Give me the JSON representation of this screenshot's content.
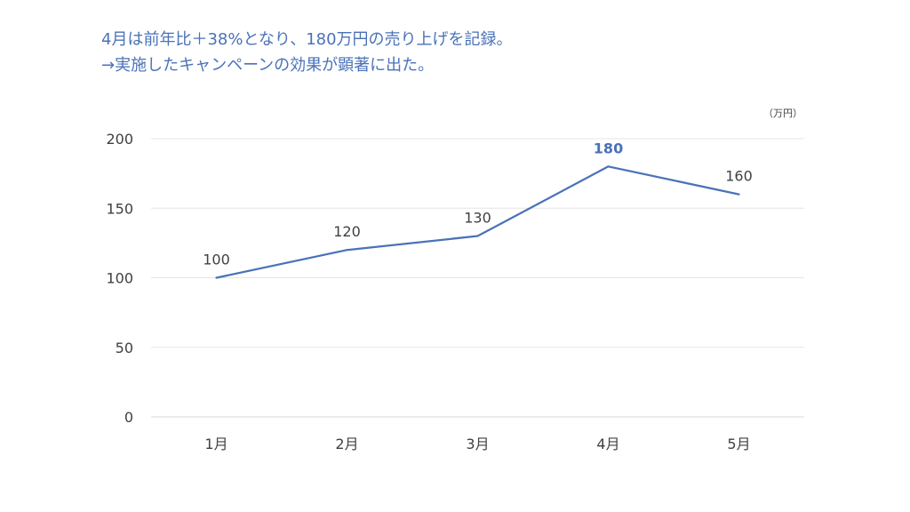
{
  "headline": {
    "line1": "4月は前年比＋38%となり、180万円の売り上げを記録。",
    "line2": "→実施したキャンペーンの効果が顕著に出た。"
  },
  "chart_data": {
    "type": "line",
    "categories": [
      "1月",
      "2月",
      "3月",
      "4月",
      "5月"
    ],
    "values": [
      100,
      120,
      130,
      180,
      160
    ],
    "unit": "（万円）",
    "ylim": [
      0,
      200
    ],
    "yticks": [
      0,
      50,
      100,
      150,
      200
    ],
    "grid": true,
    "highlight_index": 3,
    "colors": {
      "line": "#4a72b8",
      "highlight_label": "#4a72b8",
      "text": "#404040",
      "grid": "#e6e6e6"
    }
  }
}
